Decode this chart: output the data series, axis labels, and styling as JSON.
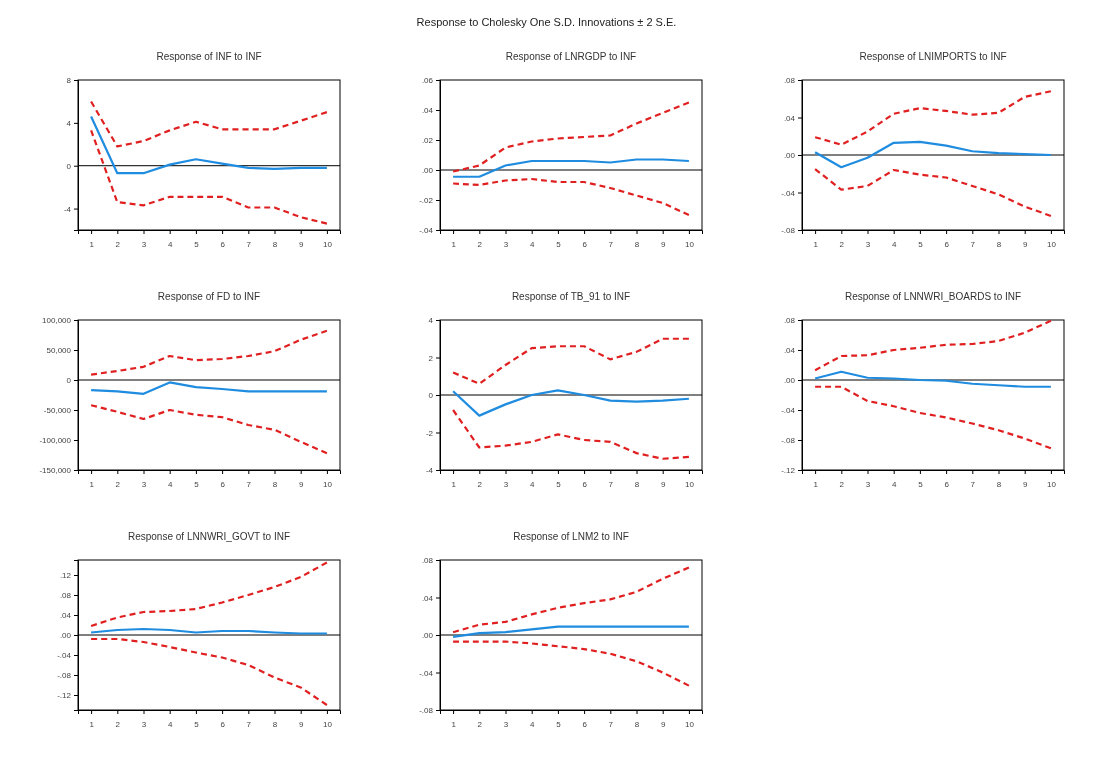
{
  "chart_data": [
    {
      "type": "other",
      "title": "Response to Cholesky One S.D. Innovations ± 2 S.E."
    },
    {
      "type": "line",
      "title": "Response of INF to INF",
      "categories": [
        "1",
        "2",
        "3",
        "4",
        "5",
        "6",
        "7",
        "8",
        "9",
        "10"
      ],
      "ylim": [
        -6,
        8
      ],
      "yticks": [
        -4,
        0,
        4,
        8
      ],
      "ref_lines": [
        {
          "axis": "y",
          "value": 0,
          "color": "#000000"
        }
      ],
      "series": [
        {
          "color": "#1f8ce0",
          "values": [
            4.6,
            -0.7,
            -0.7,
            0.1,
            0.6,
            0.2,
            -0.2,
            -0.3,
            -0.2,
            -0.2
          ],
          "line_style": "solid"
        },
        {
          "color": "#e02020",
          "values": [
            6.0,
            1.8,
            2.3,
            3.3,
            4.1,
            3.4,
            3.4,
            3.4,
            4.2,
            5.0
          ],
          "line_style": "dashed"
        },
        {
          "color": "#e02020",
          "values": [
            3.3,
            -3.4,
            -3.7,
            -2.9,
            -2.9,
            -2.9,
            -3.9,
            -3.9,
            -4.8,
            -5.4
          ],
          "line_style": "dashed"
        }
      ]
    },
    {
      "type": "line",
      "title": "Response of LNRGDP to INF",
      "categories": [
        "1",
        "2",
        "3",
        "4",
        "5",
        "6",
        "7",
        "8",
        "9",
        "10"
      ],
      "ylim": [
        -0.04,
        0.06
      ],
      "yticks": [
        {
          "value": -0.04,
          "label": "-.04"
        },
        {
          "value": -0.02,
          "label": "-.02"
        },
        {
          "value": 0,
          "label": ".00"
        },
        {
          "value": 0.02,
          "label": ".02"
        },
        {
          "value": 0.04,
          "label": ".04"
        },
        {
          "value": 0.06,
          "label": ".06"
        }
      ],
      "ref_lines": [
        {
          "axis": "y",
          "value": 0,
          "color": "#000000"
        }
      ],
      "series": [
        {
          "color": "#1f8ce0",
          "values": [
            -0.0045,
            -0.0045,
            0.003,
            0.006,
            0.006,
            0.006,
            0.005,
            0.007,
            0.007,
            0.006
          ],
          "line_style": "solid"
        },
        {
          "color": "#e02020",
          "values": [
            -0.001,
            0.003,
            0.015,
            0.019,
            0.021,
            0.022,
            0.023,
            0.031,
            0.038,
            0.045
          ],
          "line_style": "dashed"
        },
        {
          "color": "#e02020",
          "values": [
            -0.009,
            -0.01,
            -0.007,
            -0.006,
            -0.008,
            -0.008,
            -0.012,
            -0.017,
            -0.022,
            -0.03
          ],
          "line_style": "dashed"
        }
      ]
    },
    {
      "type": "line",
      "title": "Response of LNIMPORTS to INF",
      "categories": [
        "1",
        "2",
        "3",
        "4",
        "5",
        "6",
        "7",
        "8",
        "9",
        "10"
      ],
      "ylim": [
        -0.08,
        0.08
      ],
      "yticks": [
        {
          "value": -0.08,
          "label": "-.08"
        },
        {
          "value": -0.04,
          "label": "-.04"
        },
        {
          "value": 0,
          "label": ".00"
        },
        {
          "value": 0.04,
          "label": ".04"
        },
        {
          "value": 0.08,
          "label": ".08"
        }
      ],
      "ref_lines": [
        {
          "axis": "y",
          "value": 0,
          "color": "#000000"
        }
      ],
      "series": [
        {
          "color": "#1f8ce0",
          "values": [
            0.003,
            -0.013,
            -0.003,
            0.013,
            0.014,
            0.01,
            0.004,
            0.002,
            0.001,
            0.0
          ],
          "line_style": "solid"
        },
        {
          "color": "#e02020",
          "values": [
            0.019,
            0.011,
            0.025,
            0.044,
            0.05,
            0.047,
            0.043,
            0.045,
            0.062,
            0.068
          ],
          "line_style": "dashed"
        },
        {
          "color": "#e02020",
          "values": [
            -0.015,
            -0.037,
            -0.033,
            -0.016,
            -0.021,
            -0.024,
            -0.033,
            -0.042,
            -0.055,
            -0.065
          ],
          "line_style": "dashed"
        }
      ]
    },
    {
      "type": "line",
      "title": "Response of FD to INF",
      "categories": [
        "1",
        "2",
        "3",
        "4",
        "5",
        "6",
        "7",
        "8",
        "9",
        "10"
      ],
      "ylim": [
        -150000,
        100000
      ],
      "yticks": [
        {
          "value": -150000,
          "label": "-150,000"
        },
        {
          "value": -100000,
          "label": "-100,000"
        },
        {
          "value": -50000,
          "label": "-50,000"
        },
        0,
        {
          "value": 50000,
          "label": "50,000"
        },
        {
          "value": 100000,
          "label": "100,000"
        }
      ],
      "ref_lines": [
        {
          "axis": "y",
          "value": 0,
          "color": "#000000"
        }
      ],
      "series": [
        {
          "color": "#1f8ce0",
          "values": [
            -17000,
            -19000,
            -23000,
            -4000,
            -12000,
            -15000,
            -19000,
            -19000,
            -19000,
            -19000
          ],
          "line_style": "solid"
        },
        {
          "color": "#e02020",
          "values": [
            9000,
            15000,
            22000,
            40000,
            33000,
            35000,
            40000,
            48000,
            67000,
            82000
          ],
          "line_style": "dashed"
        },
        {
          "color": "#e02020",
          "values": [
            -42000,
            -53000,
            -65000,
            -50000,
            -58000,
            -62000,
            -75000,
            -83000,
            -103000,
            -122000
          ],
          "line_style": "dashed"
        }
      ]
    },
    {
      "type": "line",
      "title": "Response of TB_91 to INF",
      "categories": [
        "1",
        "2",
        "3",
        "4",
        "5",
        "6",
        "7",
        "8",
        "9",
        "10"
      ],
      "ylim": [
        -4,
        4
      ],
      "yticks": [
        -4,
        -2,
        0,
        2,
        4
      ],
      "ref_lines": [
        {
          "axis": "y",
          "value": 0,
          "color": "#000000"
        }
      ],
      "series": [
        {
          "color": "#1f8ce0",
          "values": [
            0.2,
            -1.1,
            -0.5,
            0.0,
            0.25,
            0.0,
            -0.3,
            -0.35,
            -0.3,
            -0.2
          ],
          "line_style": "solid"
        },
        {
          "color": "#e02020",
          "values": [
            1.2,
            0.6,
            1.6,
            2.5,
            2.6,
            2.6,
            1.9,
            2.3,
            3.0,
            3.0
          ],
          "line_style": "dashed"
        },
        {
          "color": "#e02020",
          "values": [
            -0.8,
            -2.8,
            -2.7,
            -2.5,
            -2.1,
            -2.4,
            -2.5,
            -3.1,
            -3.4,
            -3.3
          ],
          "line_style": "dashed"
        }
      ]
    },
    {
      "type": "line",
      "title": "Response of LNNWRI_BOARDS to INF",
      "categories": [
        "1",
        "2",
        "3",
        "4",
        "5",
        "6",
        "7",
        "8",
        "9",
        "10"
      ],
      "ylim": [
        -0.12,
        0.08
      ],
      "yticks": [
        {
          "value": -0.12,
          "label": "-.12"
        },
        {
          "value": -0.08,
          "label": "-.08"
        },
        {
          "value": -0.04,
          "label": "-.04"
        },
        {
          "value": 0,
          "label": ".00"
        },
        {
          "value": 0.04,
          "label": ".04"
        },
        {
          "value": 0.08,
          "label": ".08"
        }
      ],
      "ref_lines": [
        {
          "axis": "y",
          "value": 0,
          "color": "#000000"
        }
      ],
      "series": [
        {
          "color": "#1f8ce0",
          "values": [
            0.002,
            0.011,
            0.003,
            0.002,
            0.0,
            -0.001,
            -0.005,
            -0.007,
            -0.009,
            -0.009
          ],
          "line_style": "solid"
        },
        {
          "color": "#e02020",
          "values": [
            0.013,
            0.032,
            0.033,
            0.04,
            0.043,
            0.047,
            0.048,
            0.052,
            0.063,
            0.079
          ],
          "line_style": "dashed"
        },
        {
          "color": "#e02020",
          "values": [
            -0.009,
            -0.009,
            -0.028,
            -0.035,
            -0.044,
            -0.05,
            -0.058,
            -0.067,
            -0.078,
            -0.091
          ],
          "line_style": "dashed"
        }
      ]
    },
    {
      "type": "line",
      "title": "Response of LNNWRI_GOVT to INF",
      "categories": [
        "1",
        "2",
        "3",
        "4",
        "5",
        "6",
        "7",
        "8",
        "9",
        "10"
      ],
      "ylim": [
        -0.15,
        0.15
      ],
      "yticks": [
        {
          "value": -0.12,
          "label": "-.12"
        },
        {
          "value": -0.08,
          "label": "-.08"
        },
        {
          "value": -0.04,
          "label": "-.04"
        },
        {
          "value": 0,
          "label": ".00"
        },
        {
          "value": 0.04,
          "label": ".04"
        },
        {
          "value": 0.08,
          "label": ".08"
        },
        {
          "value": 0.12,
          "label": ".12"
        }
      ],
      "ref_lines": [
        {
          "axis": "y",
          "value": 0,
          "color": "#000000"
        }
      ],
      "series": [
        {
          "color": "#1f8ce0",
          "values": [
            0.005,
            0.01,
            0.012,
            0.01,
            0.005,
            0.008,
            0.008,
            0.005,
            0.003,
            0.003
          ],
          "line_style": "solid"
        },
        {
          "color": "#e02020",
          "values": [
            0.018,
            0.035,
            0.046,
            0.048,
            0.052,
            0.065,
            0.08,
            0.096,
            0.116,
            0.145
          ],
          "line_style": "dashed"
        },
        {
          "color": "#e02020",
          "values": [
            -0.008,
            -0.008,
            -0.014,
            -0.024,
            -0.035,
            -0.045,
            -0.06,
            -0.085,
            -0.105,
            -0.14
          ],
          "line_style": "dashed"
        }
      ]
    },
    {
      "type": "line",
      "title": "Response of LNM2 to INF",
      "categories": [
        "1",
        "2",
        "3",
        "4",
        "5",
        "6",
        "7",
        "8",
        "9",
        "10"
      ],
      "ylim": [
        -0.08,
        0.08
      ],
      "yticks": [
        {
          "value": -0.08,
          "label": "-.08"
        },
        {
          "value": -0.04,
          "label": "-.04"
        },
        {
          "value": 0,
          "label": ".00"
        },
        {
          "value": 0.04,
          "label": ".04"
        },
        {
          "value": 0.08,
          "label": ".08"
        }
      ],
      "ref_lines": [
        {
          "axis": "y",
          "value": 0,
          "color": "#000000"
        }
      ],
      "series": [
        {
          "color": "#1f8ce0",
          "values": [
            -0.002,
            0.002,
            0.003,
            0.006,
            0.009,
            0.009,
            0.009,
            0.009,
            0.009,
            0.009
          ],
          "line_style": "solid"
        },
        {
          "color": "#e02020",
          "values": [
            0.003,
            0.011,
            0.014,
            0.022,
            0.029,
            0.034,
            0.038,
            0.046,
            0.06,
            0.072
          ],
          "line_style": "dashed"
        },
        {
          "color": "#e02020",
          "values": [
            -0.007,
            -0.007,
            -0.007,
            -0.009,
            -0.012,
            -0.015,
            -0.02,
            -0.028,
            -0.04,
            -0.054
          ],
          "line_style": "dashed"
        }
      ]
    }
  ]
}
